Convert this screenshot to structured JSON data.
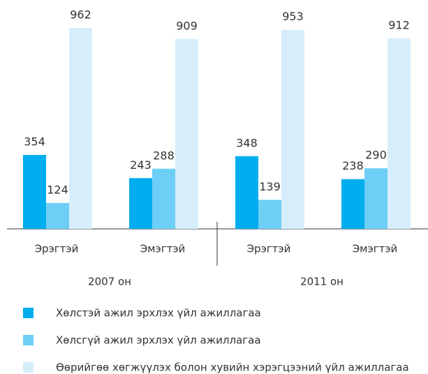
{
  "chart_data": {
    "type": "bar",
    "categories": [
      "Эрэгтэй",
      "Эмэгтэй",
      "Эрэгтэй",
      "Эмэгтэй"
    ],
    "groups": [
      "2007 он",
      "2011 он"
    ],
    "series": [
      {
        "name": "Хөлстэй ажил эрхлэх үйл ажиллагаа",
        "color": "#00aeef",
        "values": [
          354,
          243,
          348,
          238
        ]
      },
      {
        "name": "Хөлсгүй ажил эрхлэх үйл ажиллагаа",
        "color": "#6dcff6",
        "values": [
          124,
          288,
          139,
          290
        ]
      },
      {
        "name": "Өөрийгөө хөгжүүлэх болон хувийн хэрэгцээний үйл ажиллагаа",
        "color": "#d6eefb",
        "values": [
          962,
          909,
          953,
          912
        ]
      }
    ]
  }
}
